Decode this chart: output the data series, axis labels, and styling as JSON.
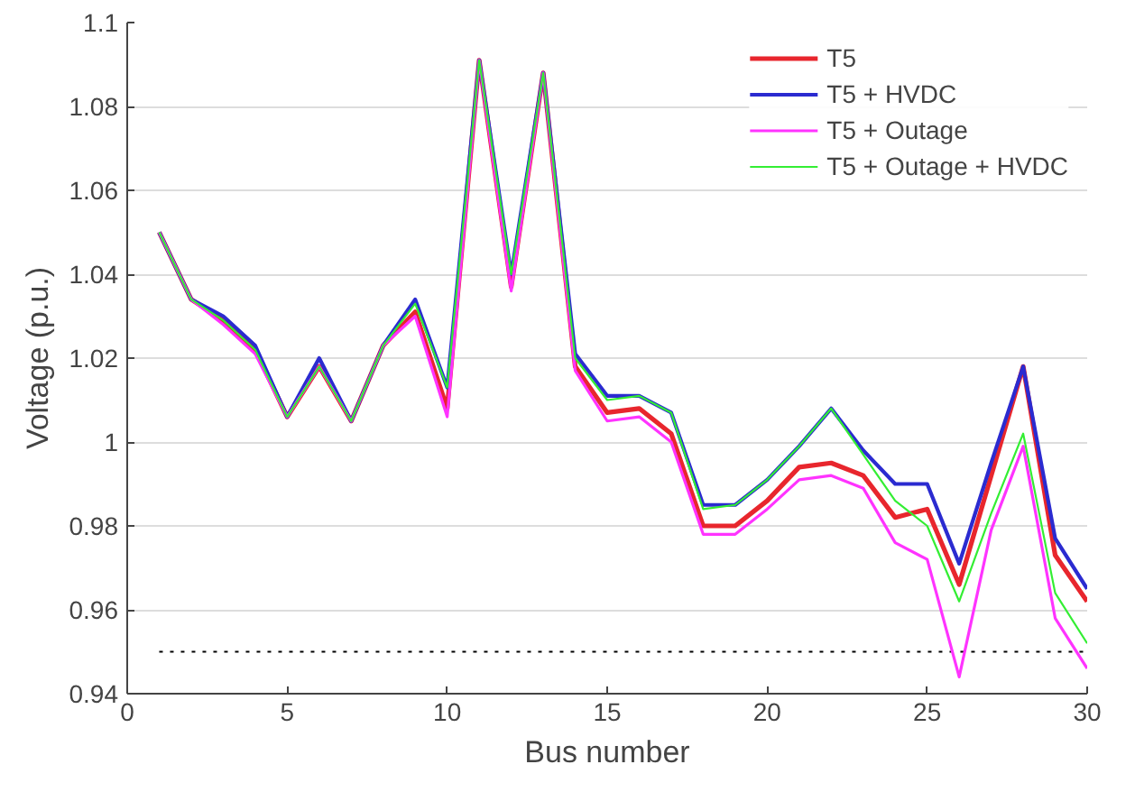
{
  "chart_data": {
    "type": "line",
    "xlabel": "Bus number",
    "ylabel": "Voltage (p.u.)",
    "x": [
      1,
      2,
      3,
      4,
      5,
      6,
      7,
      8,
      9,
      10,
      11,
      12,
      13,
      14,
      15,
      16,
      17,
      18,
      19,
      20,
      21,
      22,
      23,
      24,
      25,
      26,
      27,
      28,
      29,
      30
    ],
    "xlim": [
      0,
      30
    ],
    "xticks": [
      0,
      5,
      10,
      15,
      20,
      25,
      30
    ],
    "ylim": [
      0.94,
      1.1
    ],
    "yticks": [
      0.94,
      0.96,
      0.98,
      1,
      1.02,
      1.04,
      1.06,
      1.08,
      1.1
    ],
    "grid": "y",
    "legend": "top right",
    "line_style": "solid",
    "marker": "none",
    "ref_lines": [
      {
        "axis": "y",
        "value": 0.95,
        "color": "#000000",
        "line_style": "dotted"
      }
    ],
    "series": [
      {
        "name": "T5",
        "color": "#e8262d",
        "values": [
          1.05,
          1.034,
          1.029,
          1.022,
          1.006,
          1.018,
          1.005,
          1.023,
          1.031,
          1.008,
          1.091,
          1.037,
          1.088,
          1.018,
          1.007,
          1.008,
          1.002,
          0.98,
          0.98,
          0.986,
          0.994,
          0.995,
          0.992,
          0.982,
          0.984,
          0.966,
          0.992,
          1.018,
          0.973,
          0.962
        ]
      },
      {
        "name": "T5 + HVDC",
        "color": "#2b2bd0",
        "values": [
          1.05,
          1.034,
          1.03,
          1.023,
          1.006,
          1.02,
          1.005,
          1.023,
          1.034,
          1.013,
          1.091,
          1.04,
          1.088,
          1.021,
          1.011,
          1.011,
          1.007,
          0.985,
          0.985,
          0.991,
          0.999,
          1.008,
          0.998,
          0.99,
          0.99,
          0.971,
          0.995,
          1.018,
          0.977,
          0.965
        ]
      },
      {
        "name": "T5 + Outage",
        "color": "#ff33ff",
        "values": [
          1.05,
          1.034,
          1.028,
          1.021,
          1.006,
          1.018,
          1.005,
          1.023,
          1.03,
          1.006,
          1.091,
          1.036,
          1.088,
          1.017,
          1.005,
          1.006,
          1.0,
          0.978,
          0.978,
          0.984,
          0.991,
          0.992,
          0.989,
          0.976,
          0.972,
          0.944,
          0.979,
          0.999,
          0.958,
          0.946
        ]
      },
      {
        "name": "T5 + Outage + HVDC",
        "color": "#33ee33",
        "values": [
          1.05,
          1.034,
          1.029,
          1.022,
          1.006,
          1.018,
          1.005,
          1.023,
          1.033,
          1.013,
          1.091,
          1.04,
          1.088,
          1.02,
          1.01,
          1.011,
          1.007,
          0.984,
          0.985,
          0.991,
          0.999,
          1.008,
          0.997,
          0.986,
          0.98,
          0.962,
          0.983,
          1.002,
          0.964,
          0.952
        ]
      }
    ]
  }
}
